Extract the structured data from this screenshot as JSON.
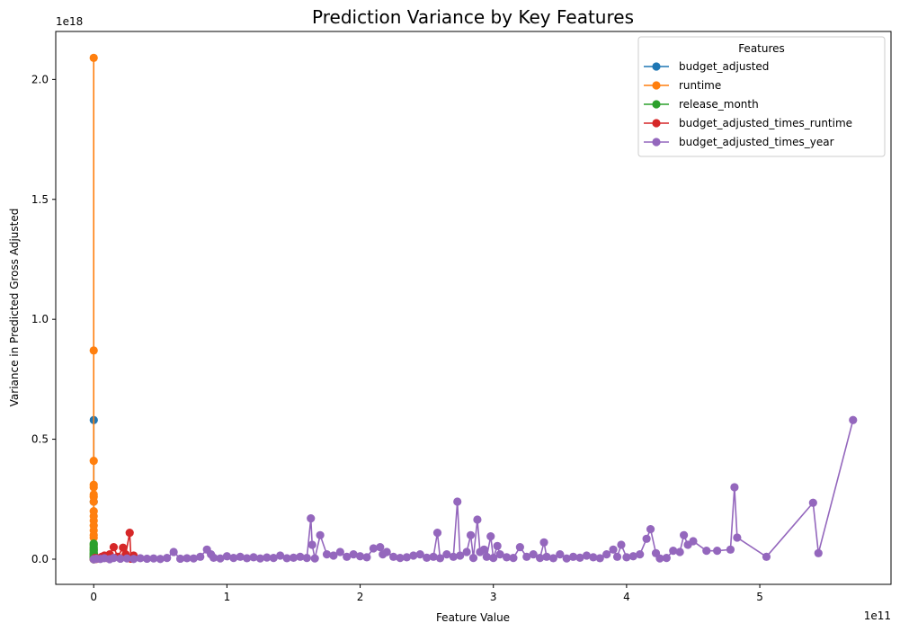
{
  "chart_data": {
    "type": "line",
    "title": "Prediction Variance by Key Features",
    "xlabel": "Feature Value",
    "ylabel": "Variance in Predicted Gross Adjusted",
    "x_offset_label": "1e11",
    "y_offset_label": "1e18",
    "xlim": [
      -0.285,
      5.985
    ],
    "ylim": [
      -0.105,
      2.2
    ],
    "x_ticks": [
      0,
      1,
      2,
      3,
      4,
      5
    ],
    "x_tick_labels": [
      "0",
      "1",
      "2",
      "3",
      "4",
      "5"
    ],
    "y_ticks": [
      0.0,
      0.5,
      1.0,
      1.5,
      2.0
    ],
    "y_tick_labels": [
      "0.0",
      "0.5",
      "1.0",
      "1.5",
      "2.0"
    ],
    "x_units_note": "x values in units of 1e11, y values in units of 1e18",
    "legend": {
      "title": "Features",
      "placement": "upper right"
    },
    "series": [
      {
        "name": "budget_adjusted",
        "color": "#1f77b4",
        "x": [
          0.0,
          0.0001,
          0.0001,
          0.0002,
          0.0002,
          0.0003,
          0.0003,
          0.0004,
          0.0005,
          0.0006,
          0.0008,
          0.001,
          0.0015,
          0.002,
          0.003
        ],
        "y": [
          0.0,
          0.01,
          0.002,
          0.005,
          0.0,
          0.04,
          0.24,
          0.58,
          0.015,
          0.003,
          0.008,
          0.001,
          0.02,
          0.004,
          0.0
        ]
      },
      {
        "name": "runtime",
        "color": "#ff7f0e",
        "x": [
          0.0,
          0.0,
          0.0,
          0.0,
          0.0,
          0.0,
          0.0,
          0.0,
          0.0,
          0.0,
          0.0,
          0.0,
          0.0,
          0.0,
          0.0,
          0.0,
          0.0,
          0.0,
          0.0,
          0.0
        ],
        "y": [
          0.0,
          0.01,
          0.02,
          0.04,
          0.06,
          0.09,
          0.1,
          0.12,
          0.14,
          0.16,
          0.18,
          0.2,
          0.24,
          0.26,
          0.27,
          0.3,
          0.31,
          0.41,
          0.87,
          2.09
        ]
      },
      {
        "name": "release_month",
        "color": "#2ca02c",
        "x": [
          0.0,
          0.0,
          0.0,
          0.0,
          0.0,
          0.0,
          0.0,
          0.0,
          0.0,
          0.0,
          0.0,
          0.0
        ],
        "y": [
          0.0,
          0.005,
          0.01,
          0.015,
          0.02,
          0.025,
          0.03,
          0.035,
          0.045,
          0.05,
          0.06,
          0.065
        ]
      },
      {
        "name": "budget_adjusted_times_runtime",
        "color": "#d62728",
        "x": [
          0.0,
          0.005,
          0.01,
          0.02,
          0.03,
          0.04,
          0.06,
          0.08,
          0.1,
          0.12,
          0.15,
          0.18,
          0.22,
          0.24,
          0.27,
          0.28,
          0.3
        ],
        "y": [
          0.0,
          0.002,
          0.005,
          0.001,
          0.004,
          0.003,
          0.01,
          0.015,
          0.005,
          0.02,
          0.05,
          0.01,
          0.048,
          0.02,
          0.11,
          0.002,
          0.015
        ]
      },
      {
        "name": "budget_adjusted_times_year",
        "color": "#9467bd",
        "x": [
          0.0,
          0.02,
          0.05,
          0.08,
          0.12,
          0.15,
          0.2,
          0.25,
          0.3,
          0.35,
          0.4,
          0.45,
          0.5,
          0.55,
          0.6,
          0.65,
          0.7,
          0.75,
          0.8,
          0.85,
          0.88,
          0.9,
          0.95,
          1.0,
          1.05,
          1.1,
          1.15,
          1.2,
          1.25,
          1.3,
          1.35,
          1.4,
          1.45,
          1.5,
          1.55,
          1.6,
          1.63,
          1.64,
          1.66,
          1.7,
          1.75,
          1.8,
          1.85,
          1.9,
          1.95,
          2.0,
          2.05,
          2.1,
          2.15,
          2.17,
          2.2,
          2.25,
          2.3,
          2.35,
          2.4,
          2.45,
          2.5,
          2.55,
          2.58,
          2.6,
          2.65,
          2.7,
          2.73,
          2.75,
          2.8,
          2.83,
          2.85,
          2.88,
          2.9,
          2.93,
          2.95,
          2.98,
          3.0,
          3.03,
          3.05,
          3.1,
          3.15,
          3.2,
          3.25,
          3.3,
          3.35,
          3.38,
          3.4,
          3.45,
          3.5,
          3.55,
          3.6,
          3.65,
          3.7,
          3.75,
          3.8,
          3.85,
          3.9,
          3.93,
          3.96,
          4.0,
          4.05,
          4.1,
          4.15,
          4.18,
          4.22,
          4.25,
          4.3,
          4.35,
          4.4,
          4.43,
          4.46,
          4.5,
          4.6,
          4.68,
          4.78,
          4.81,
          4.83,
          5.05,
          5.4,
          5.44,
          5.7
        ],
        "y": [
          0.0,
          0.002,
          0.001,
          0.004,
          0.0,
          0.005,
          0.002,
          0.003,
          0.001,
          0.004,
          0.002,
          0.003,
          0.001,
          0.005,
          0.03,
          0.002,
          0.004,
          0.003,
          0.01,
          0.04,
          0.02,
          0.006,
          0.003,
          0.012,
          0.005,
          0.01,
          0.004,
          0.008,
          0.003,
          0.007,
          0.005,
          0.015,
          0.004,
          0.006,
          0.01,
          0.005,
          0.17,
          0.06,
          0.003,
          0.1,
          0.02,
          0.015,
          0.03,
          0.01,
          0.02,
          0.012,
          0.008,
          0.045,
          0.05,
          0.02,
          0.03,
          0.01,
          0.005,
          0.008,
          0.015,
          0.02,
          0.006,
          0.01,
          0.11,
          0.004,
          0.02,
          0.01,
          0.24,
          0.015,
          0.03,
          0.1,
          0.005,
          0.165,
          0.03,
          0.04,
          0.01,
          0.095,
          0.005,
          0.055,
          0.02,
          0.008,
          0.005,
          0.05,
          0.01,
          0.02,
          0.005,
          0.07,
          0.01,
          0.004,
          0.02,
          0.003,
          0.01,
          0.006,
          0.015,
          0.008,
          0.004,
          0.02,
          0.04,
          0.01,
          0.06,
          0.008,
          0.012,
          0.02,
          0.085,
          0.125,
          0.025,
          0.003,
          0.005,
          0.035,
          0.03,
          0.1,
          0.06,
          0.075,
          0.035,
          0.035,
          0.04,
          0.3,
          0.09,
          0.01,
          0.235,
          0.025,
          0.58
        ]
      }
    ]
  }
}
